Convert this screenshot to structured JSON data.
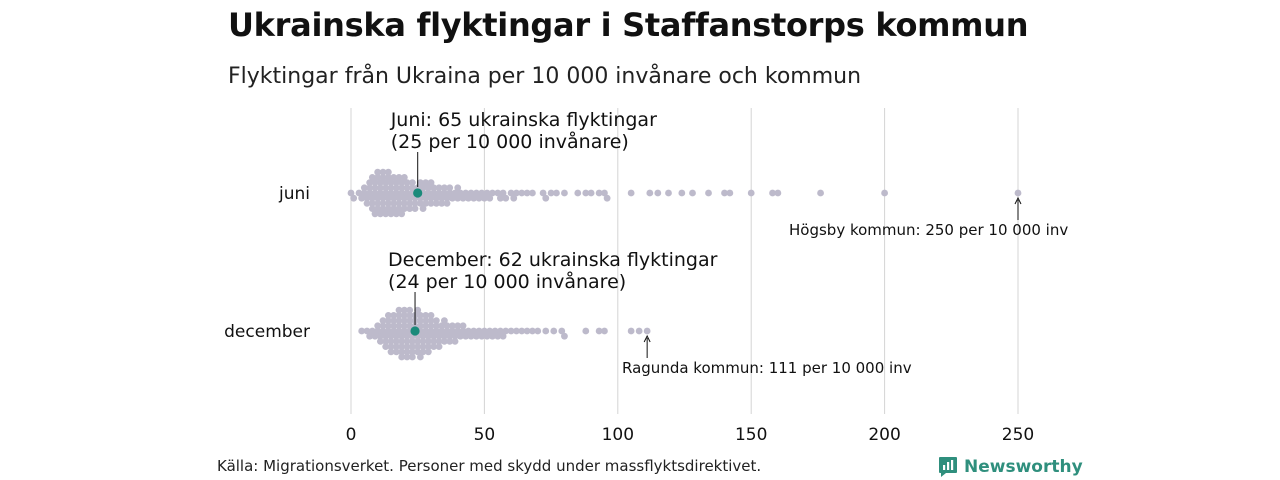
{
  "chart_data": {
    "type": "scatter",
    "title": "Ukrainska flyktingar i Staffanstorps kommun",
    "subtitle": "Flyktingar från Ukraina per 10 000 invånare och kommun",
    "xlim": [
      0,
      260
    ],
    "x_ticks": [
      "0",
      "50",
      "100",
      "150",
      "200",
      "250"
    ],
    "x_tick_values": [
      0,
      50,
      100,
      150,
      200,
      250
    ],
    "grid": true,
    "categories": [
      "juni",
      "december"
    ],
    "point_color": "#bdbacb",
    "highlight_color": "#1a8a7a",
    "series": [
      {
        "name": "juni",
        "highlight": {
          "value": 25,
          "label_line1": "Juni: 65 ukrainska flyktingar",
          "label_line2": "(25 per 10 000 invånare)"
        },
        "outlier": {
          "value": 250,
          "label": "Högsby kommun: 250 per 10 000 inv"
        },
        "values": [
          0,
          1,
          3,
          4,
          5,
          5,
          6,
          6,
          7,
          7,
          7,
          8,
          8,
          8,
          8,
          9,
          9,
          9,
          9,
          10,
          10,
          10,
          10,
          10,
          11,
          11,
          11,
          11,
          12,
          12,
          12,
          12,
          12,
          13,
          13,
          13,
          13,
          14,
          14,
          14,
          14,
          14,
          15,
          15,
          15,
          15,
          16,
          16,
          16,
          16,
          17,
          17,
          17,
          17,
          18,
          18,
          18,
          18,
          19,
          19,
          19,
          19,
          20,
          20,
          20,
          20,
          21,
          21,
          21,
          22,
          22,
          22,
          23,
          23,
          23,
          24,
          24,
          24,
          25,
          25,
          26,
          26,
          26,
          27,
          27,
          27,
          28,
          28,
          28,
          29,
          29,
          30,
          30,
          30,
          31,
          31,
          32,
          32,
          33,
          33,
          34,
          34,
          35,
          35,
          36,
          36,
          37,
          37,
          38,
          39,
          40,
          40,
          41,
          42,
          43,
          44,
          45,
          46,
          47,
          48,
          49,
          50,
          51,
          52,
          53,
          55,
          56,
          57,
          58,
          60,
          61,
          62,
          64,
          66,
          68,
          72,
          73,
          75,
          77,
          80,
          85,
          88,
          90,
          93,
          95,
          96,
          105,
          112,
          115,
          119,
          124,
          128,
          134,
          140,
          142,
          150,
          158,
          160,
          176,
          200,
          250
        ]
      },
      {
        "name": "december",
        "highlight": {
          "value": 24,
          "label_line1": "December: 62 ukrainska flyktingar",
          "label_line2": "(24 per 10 000 invånare)"
        },
        "outlier": {
          "value": 111,
          "label": "Ragunda kommun: 111 per 10 000 inv"
        },
        "values": [
          4,
          6,
          7,
          8,
          9,
          10,
          10,
          11,
          11,
          12,
          12,
          12,
          13,
          13,
          13,
          14,
          14,
          14,
          14,
          15,
          15,
          15,
          15,
          16,
          16,
          16,
          16,
          17,
          17,
          17,
          17,
          18,
          18,
          18,
          18,
          18,
          19,
          19,
          19,
          19,
          19,
          20,
          20,
          20,
          20,
          20,
          21,
          21,
          21,
          21,
          21,
          22,
          22,
          22,
          22,
          22,
          23,
          23,
          23,
          23,
          23,
          24,
          24,
          24,
          24,
          25,
          25,
          25,
          25,
          25,
          26,
          26,
          26,
          26,
          26,
          27,
          27,
          27,
          27,
          28,
          28,
          28,
          28,
          29,
          29,
          29,
          29,
          30,
          30,
          30,
          30,
          31,
          31,
          31,
          32,
          32,
          32,
          33,
          33,
          33,
          34,
          34,
          35,
          35,
          35,
          36,
          36,
          37,
          37,
          38,
          38,
          39,
          39,
          40,
          40,
          41,
          42,
          42,
          43,
          44,
          45,
          46,
          47,
          48,
          49,
          50,
          51,
          52,
          53,
          54,
          55,
          56,
          57,
          58,
          60,
          62,
          64,
          66,
          68,
          70,
          73,
          76,
          79,
          80,
          88,
          93,
          95,
          105,
          108,
          111
        ]
      }
    ]
  },
  "source": "Källa: Migrationsverket. Personer med skydd under massflyktsdirektivet.",
  "brand": {
    "name": "Newsworthy",
    "color": "#2f8f7d",
    "icon": "chart-logo-icon"
  }
}
